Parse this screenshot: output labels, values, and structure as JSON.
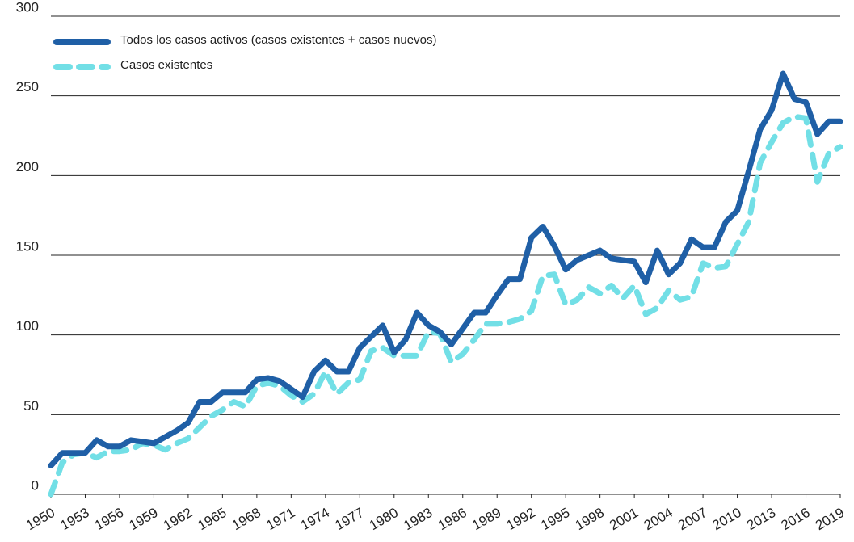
{
  "chart_data": {
    "type": "line",
    "x": [
      1950,
      1951,
      1952,
      1953,
      1954,
      1955,
      1956,
      1957,
      1958,
      1959,
      1960,
      1961,
      1962,
      1963,
      1964,
      1965,
      1966,
      1967,
      1968,
      1969,
      1970,
      1971,
      1972,
      1973,
      1974,
      1975,
      1976,
      1977,
      1978,
      1979,
      1980,
      1981,
      1982,
      1983,
      1984,
      1985,
      1986,
      1987,
      1988,
      1989,
      1990,
      1991,
      1992,
      1993,
      1994,
      1995,
      1996,
      1997,
      1998,
      1999,
      2000,
      2001,
      2002,
      2003,
      2004,
      2005,
      2006,
      2007,
      2008,
      2009,
      2010,
      2011,
      2012,
      2013,
      2014,
      2015,
      2016,
      2017,
      2018,
      2019
    ],
    "series": [
      {
        "name": "Todos los casos activos (casos existentes + casos nuevos)",
        "color": "#1f5fa6",
        "dash": false,
        "values": [
          18,
          26,
          26,
          26,
          34,
          30,
          30,
          34,
          33,
          32,
          36,
          40,
          45,
          58,
          58,
          64,
          64,
          64,
          72,
          73,
          71,
          66,
          61,
          77,
          84,
          77,
          77,
          92,
          99,
          106,
          89,
          97,
          114,
          106,
          102,
          94,
          104,
          114,
          114,
          125,
          135,
          135,
          161,
          168,
          156,
          141,
          147,
          150,
          153,
          148,
          147,
          146,
          133,
          153,
          138,
          145,
          160,
          155,
          155,
          171,
          178,
          203,
          229,
          241,
          264,
          248,
          246,
          226,
          234,
          234
        ]
      },
      {
        "name": "Casos existentes",
        "color": "#72dfe6",
        "dash": true,
        "values": [
          0,
          20,
          25,
          26,
          23,
          27,
          27,
          28,
          32,
          31,
          28,
          32,
          35,
          42,
          49,
          53,
          58,
          55,
          68,
          70,
          68,
          62,
          58,
          63,
          77,
          63,
          70,
          72,
          90,
          92,
          87,
          87,
          87,
          102,
          101,
          83,
          88,
          97,
          107,
          107,
          108,
          110,
          115,
          137,
          138,
          119,
          122,
          130,
          126,
          131,
          123,
          131,
          113,
          117,
          128,
          122,
          124,
          145,
          142,
          143,
          157,
          171,
          208,
          221,
          233,
          237,
          236,
          196,
          214,
          218
        ]
      }
    ],
    "xlim": [
      1950,
      2019
    ],
    "xticks": [
      1950,
      1953,
      1956,
      1959,
      1962,
      1965,
      1968,
      1971,
      1974,
      1977,
      1980,
      1983,
      1986,
      1989,
      1992,
      1995,
      1998,
      2001,
      2004,
      2007,
      2010,
      2013,
      2016,
      2019
    ],
    "ylim": [
      0,
      300
    ],
    "yticks": [
      0,
      50,
      100,
      150,
      200,
      250,
      300
    ],
    "grid": true
  }
}
